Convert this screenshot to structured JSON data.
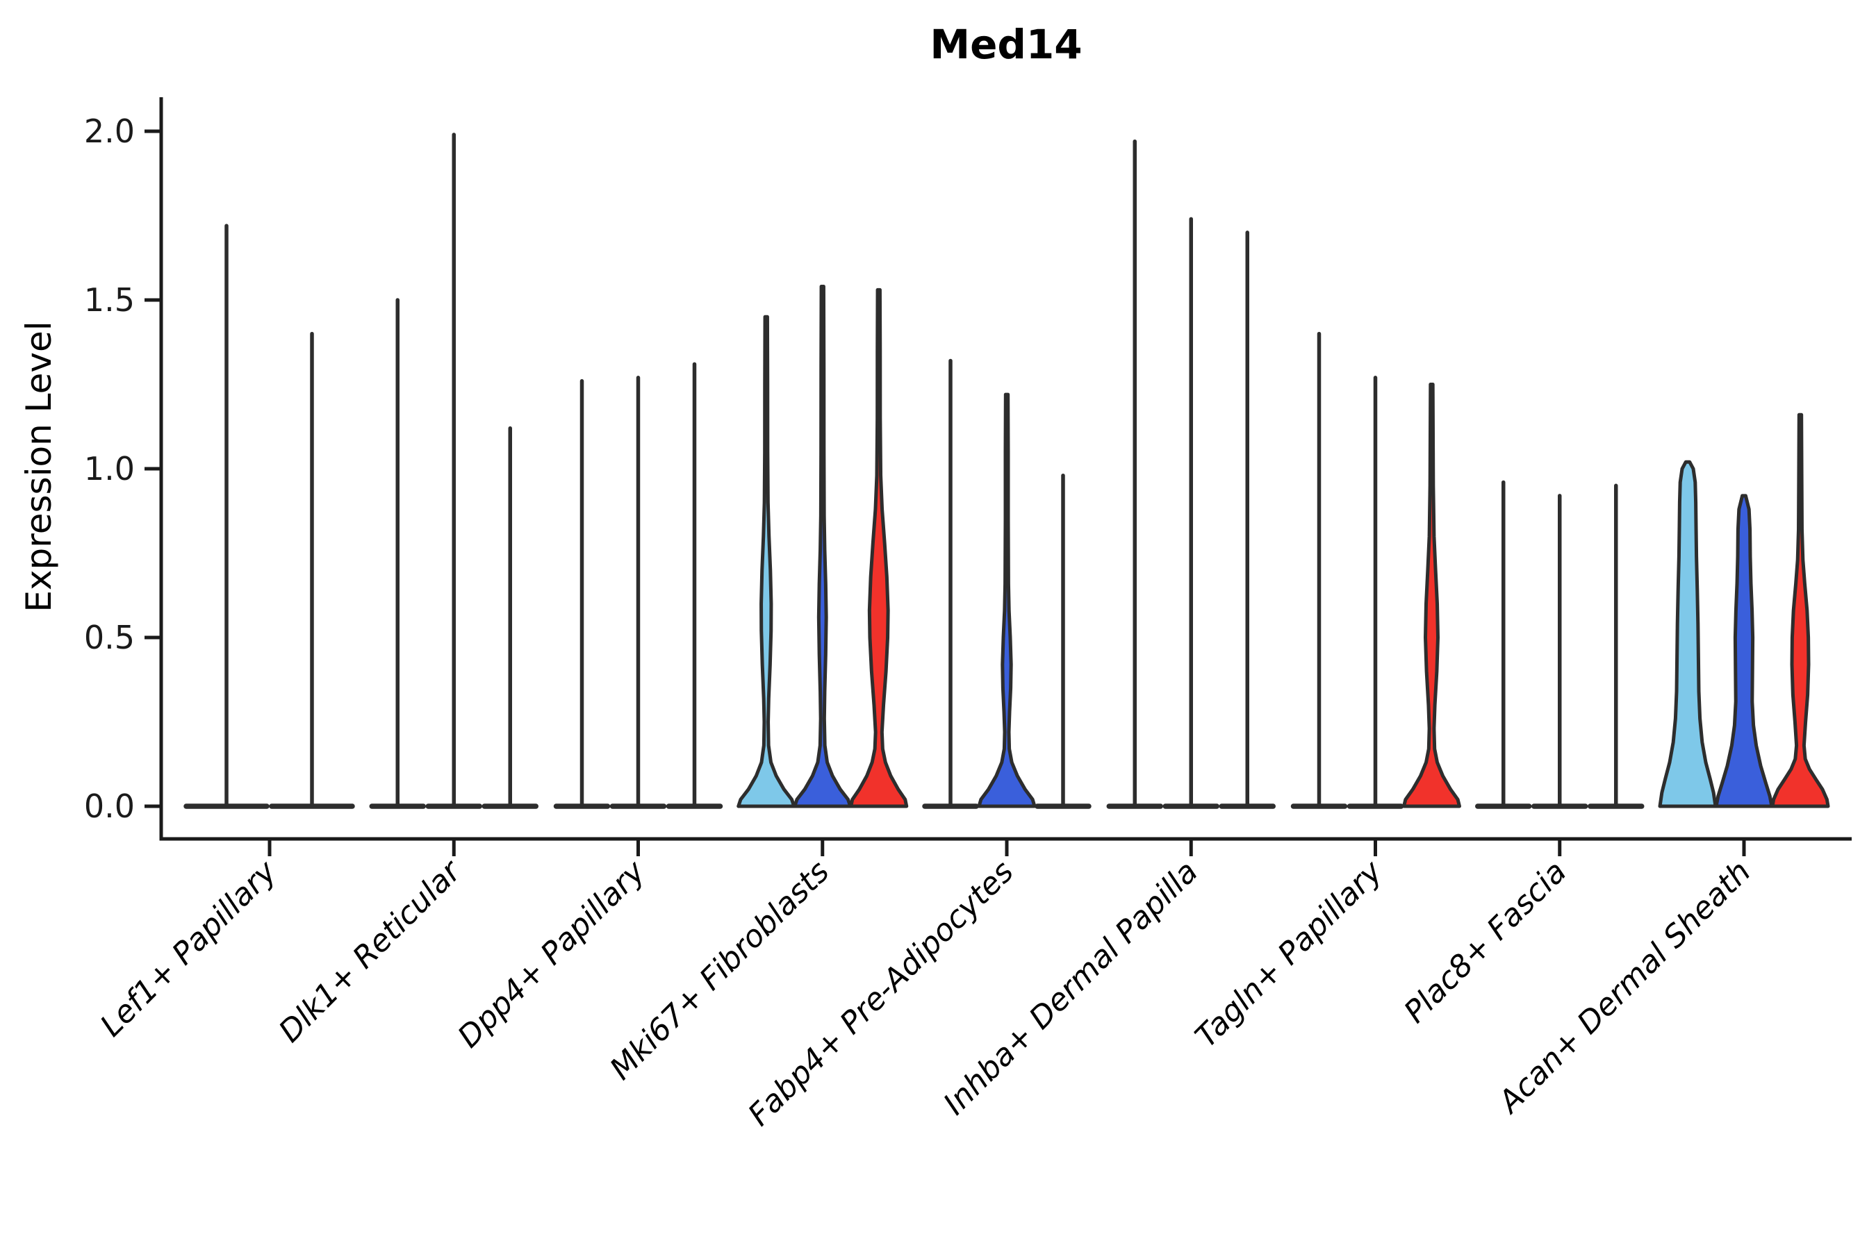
{
  "title": "Med14",
  "y_axis": {
    "label": "Expression Level",
    "tick_labels": [
      "0.0",
      "0.5",
      "1.0",
      "1.5",
      "2.0"
    ]
  },
  "colors": {
    "light_blue": "#7EC8E9",
    "dark_blue": "#3A5FDB",
    "red": "#F1322B",
    "neutral": "none",
    "outline": "#2d2d2d",
    "axis": "#1a1a1a",
    "background": "#ffffff"
  },
  "chart_data": {
    "type": "violin",
    "title": "Med14",
    "xlabel": "",
    "ylabel": "Expression Level",
    "ylim": [
      0,
      2.1
    ],
    "yticks": [
      0,
      0.5,
      1.0,
      1.5,
      2.0
    ],
    "grid": false,
    "legend_position": "none",
    "categories": [
      "Lef1+ Papillary",
      "Dlk1+ Reticular",
      "Dpp4+ Papillary",
      "Mki67+ Fibroblasts",
      "Fabp4+ Pre-Adipocytes",
      "Inhba+ Dermal Papilla",
      "Tagln+ Papillary",
      "Plac8+ Fascia",
      "Acan+ Dermal Sheath"
    ],
    "groups": [
      {
        "category": "Lef1+ Papillary",
        "violins": [
          {
            "color": "neutral",
            "shape": "spike",
            "max": 1.72,
            "offset": -62,
            "halfwidth": 61
          },
          {
            "color": "neutral",
            "shape": "spike",
            "max": 1.4,
            "offset": 61,
            "halfwidth": 61
          }
        ]
      },
      {
        "category": "Dlk1+ Reticular",
        "violins": [
          {
            "color": "neutral",
            "shape": "spike",
            "max": 1.5,
            "offset": -81,
            "halfwidth": 40
          },
          {
            "color": "neutral",
            "shape": "spike",
            "max": 1.99,
            "offset": 0,
            "halfwidth": 40
          },
          {
            "color": "neutral",
            "shape": "spike",
            "max": 1.12,
            "offset": 81,
            "halfwidth": 40
          }
        ]
      },
      {
        "category": "Dpp4+ Papillary",
        "violins": [
          {
            "color": "neutral",
            "shape": "spike",
            "max": 1.26,
            "offset": -81,
            "halfwidth": 40
          },
          {
            "color": "neutral",
            "shape": "spike",
            "max": 1.27,
            "offset": 0,
            "halfwidth": 40
          },
          {
            "color": "neutral",
            "shape": "spike",
            "max": 1.31,
            "offset": 81,
            "halfwidth": 40
          }
        ]
      },
      {
        "category": "Mki67+ Fibroblasts",
        "violins": [
          {
            "color": "light_blue",
            "shape": "body",
            "max": 1.45,
            "offset": -81,
            "halfwidth": 40,
            "profile": [
              [
                0,
                1
              ],
              [
                0.02,
                0.92
              ],
              [
                0.05,
                0.64
              ],
              [
                0.09,
                0.36
              ],
              [
                0.13,
                0.17
              ],
              [
                0.18,
                0.085
              ],
              [
                0.25,
                0.07
              ],
              [
                0.32,
                0.09
              ],
              [
                0.42,
                0.14
              ],
              [
                0.52,
                0.175
              ],
              [
                0.6,
                0.18
              ],
              [
                0.7,
                0.15
              ],
              [
                0.8,
                0.1
              ],
              [
                0.9,
                0.065
              ],
              [
                1.05,
                0.052
              ],
              [
                1.25,
                0.05
              ],
              [
                1.45,
                0.042
              ]
            ]
          },
          {
            "color": "dark_blue",
            "shape": "body",
            "max": 1.54,
            "offset": 0,
            "halfwidth": 40,
            "profile": [
              [
                0,
                1
              ],
              [
                0.02,
                0.92
              ],
              [
                0.05,
                0.64
              ],
              [
                0.09,
                0.36
              ],
              [
                0.13,
                0.17
              ],
              [
                0.18,
                0.085
              ],
              [
                0.26,
                0.065
              ],
              [
                0.34,
                0.08
              ],
              [
                0.45,
                0.115
              ],
              [
                0.56,
                0.135
              ],
              [
                0.66,
                0.115
              ],
              [
                0.76,
                0.08
              ],
              [
                0.86,
                0.06
              ],
              [
                1.05,
                0.052
              ],
              [
                1.3,
                0.05
              ],
              [
                1.54,
                0.042
              ]
            ]
          },
          {
            "color": "red",
            "shape": "body",
            "max": 1.53,
            "offset": 81,
            "halfwidth": 40,
            "profile": [
              [
                0,
                1
              ],
              [
                0.02,
                0.95
              ],
              [
                0.05,
                0.7
              ],
              [
                0.09,
                0.43
              ],
              [
                0.13,
                0.24
              ],
              [
                0.17,
                0.14
              ],
              [
                0.22,
                0.115
              ],
              [
                0.3,
                0.17
              ],
              [
                0.4,
                0.26
              ],
              [
                0.5,
                0.32
              ],
              [
                0.58,
                0.335
              ],
              [
                0.68,
                0.29
              ],
              [
                0.78,
                0.21
              ],
              [
                0.88,
                0.12
              ],
              [
                0.98,
                0.07
              ],
              [
                1.15,
                0.052
              ],
              [
                1.35,
                0.05
              ],
              [
                1.53,
                0.042
              ]
            ]
          }
        ]
      },
      {
        "category": "Fabp4+ Pre-Adipocytes",
        "violins": [
          {
            "color": "neutral",
            "shape": "spike",
            "max": 1.32,
            "offset": -81,
            "halfwidth": 40
          },
          {
            "color": "dark_blue",
            "shape": "body",
            "max": 1.22,
            "offset": 0,
            "halfwidth": 40,
            "profile": [
              [
                0,
                1
              ],
              [
                0.02,
                0.93
              ],
              [
                0.05,
                0.66
              ],
              [
                0.09,
                0.38
              ],
              [
                0.13,
                0.18
              ],
              [
                0.17,
                0.09
              ],
              [
                0.22,
                0.075
              ],
              [
                0.28,
                0.1
              ],
              [
                0.35,
                0.14
              ],
              [
                0.42,
                0.155
              ],
              [
                0.5,
                0.125
              ],
              [
                0.58,
                0.08
              ],
              [
                0.66,
                0.06
              ],
              [
                0.85,
                0.05
              ],
              [
                1.05,
                0.05
              ],
              [
                1.22,
                0.042
              ]
            ]
          },
          {
            "color": "neutral",
            "shape": "spike",
            "max": 0.98,
            "offset": 81,
            "halfwidth": 40
          }
        ]
      },
      {
        "category": "Inhba+ Dermal Papilla",
        "violins": [
          {
            "color": "neutral",
            "shape": "spike",
            "max": 1.97,
            "offset": -81,
            "halfwidth": 40
          },
          {
            "color": "neutral",
            "shape": "spike",
            "max": 1.74,
            "offset": 0,
            "halfwidth": 40
          },
          {
            "color": "neutral",
            "shape": "spike",
            "max": 1.7,
            "offset": 81,
            "halfwidth": 40
          }
        ]
      },
      {
        "category": "Tagln+ Papillary",
        "violins": [
          {
            "color": "neutral",
            "shape": "spike",
            "max": 1.4,
            "offset": -81,
            "halfwidth": 40
          },
          {
            "color": "neutral",
            "shape": "spike",
            "max": 1.27,
            "offset": 0,
            "halfwidth": 40
          },
          {
            "color": "red",
            "shape": "body",
            "max": 1.25,
            "offset": 81,
            "halfwidth": 40,
            "profile": [
              [
                0,
                1
              ],
              [
                0.02,
                0.94
              ],
              [
                0.05,
                0.68
              ],
              [
                0.09,
                0.4
              ],
              [
                0.13,
                0.2
              ],
              [
                0.17,
                0.105
              ],
              [
                0.23,
                0.085
              ],
              [
                0.3,
                0.115
              ],
              [
                0.4,
                0.185
              ],
              [
                0.5,
                0.225
              ],
              [
                0.6,
                0.2
              ],
              [
                0.7,
                0.14
              ],
              [
                0.8,
                0.085
              ],
              [
                0.95,
                0.058
              ],
              [
                1.1,
                0.05
              ],
              [
                1.25,
                0.042
              ]
            ]
          }
        ]
      },
      {
        "category": "Plac8+ Fascia",
        "violins": [
          {
            "color": "neutral",
            "shape": "spike",
            "max": 0.96,
            "offset": -81,
            "halfwidth": 40
          },
          {
            "color": "neutral",
            "shape": "spike",
            "max": 0.92,
            "offset": 0,
            "halfwidth": 40
          },
          {
            "color": "neutral",
            "shape": "spike",
            "max": 0.95,
            "offset": 81,
            "halfwidth": 40
          }
        ]
      },
      {
        "category": "Acan+ Dermal Sheath",
        "violins": [
          {
            "color": "light_blue",
            "shape": "body",
            "max": 1.02,
            "offset": -81,
            "halfwidth": 40,
            "profile": [
              [
                0,
                1
              ],
              [
                0.04,
                0.93
              ],
              [
                0.08,
                0.81
              ],
              [
                0.13,
                0.65
              ],
              [
                0.19,
                0.52
              ],
              [
                0.26,
                0.44
              ],
              [
                0.34,
                0.4
              ],
              [
                0.44,
                0.385
              ],
              [
                0.54,
                0.37
              ],
              [
                0.64,
                0.345
              ],
              [
                0.74,
                0.315
              ],
              [
                0.83,
                0.3
              ],
              [
                0.9,
                0.29
              ],
              [
                0.96,
                0.27
              ],
              [
                1.0,
                0.2
              ],
              [
                1.02,
                0.07
              ]
            ]
          },
          {
            "color": "dark_blue",
            "shape": "body",
            "max": 0.92,
            "offset": 0,
            "halfwidth": 40,
            "profile": [
              [
                0,
                1
              ],
              [
                0.03,
                0.93
              ],
              [
                0.07,
                0.78
              ],
              [
                0.12,
                0.6
              ],
              [
                0.18,
                0.44
              ],
              [
                0.24,
                0.34
              ],
              [
                0.31,
                0.295
              ],
              [
                0.4,
                0.305
              ],
              [
                0.5,
                0.315
              ],
              [
                0.58,
                0.29
              ],
              [
                0.66,
                0.25
              ],
              [
                0.74,
                0.225
              ],
              [
                0.82,
                0.215
              ],
              [
                0.88,
                0.18
              ],
              [
                0.92,
                0.06
              ]
            ]
          },
          {
            "color": "red",
            "shape": "body",
            "max": 1.16,
            "offset": 81,
            "halfwidth": 40,
            "profile": [
              [
                0,
                1
              ],
              [
                0.02,
                0.96
              ],
              [
                0.05,
                0.8
              ],
              [
                0.08,
                0.56
              ],
              [
                0.11,
                0.33
              ],
              [
                0.14,
                0.18
              ],
              [
                0.18,
                0.135
              ],
              [
                0.25,
                0.19
              ],
              [
                0.33,
                0.265
              ],
              [
                0.42,
                0.3
              ],
              [
                0.5,
                0.29
              ],
              [
                0.58,
                0.245
              ],
              [
                0.66,
                0.16
              ],
              [
                0.73,
                0.095
              ],
              [
                0.82,
                0.062
              ],
              [
                0.98,
                0.052
              ],
              [
                1.16,
                0.042
              ]
            ]
          }
        ]
      }
    ]
  }
}
